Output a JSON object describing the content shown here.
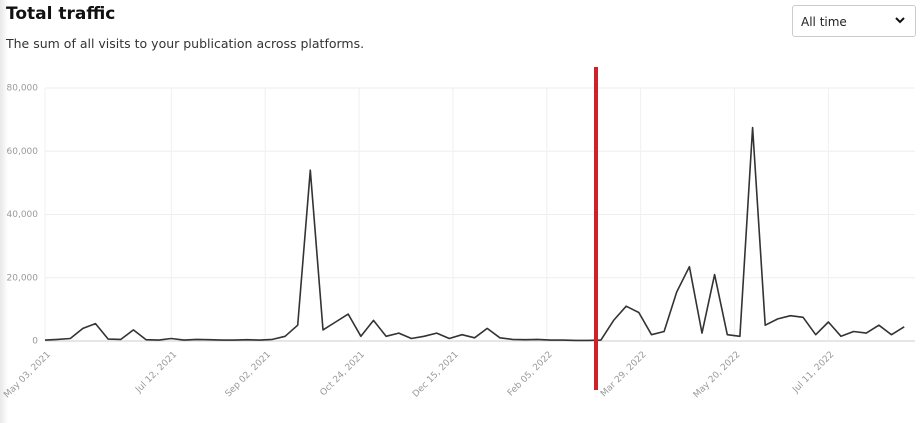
{
  "chart_data": {
    "type": "line",
    "title": "Total traffic",
    "subtitle": "The sum of all visits to your publication across platforms.",
    "x": [
      "2021-05-03",
      "2021-05-10",
      "2021-05-17",
      "2021-05-24",
      "2021-05-31",
      "2021-06-07",
      "2021-06-14",
      "2021-06-21",
      "2021-06-28",
      "2021-07-05",
      "2021-07-12",
      "2021-07-19",
      "2021-07-26",
      "2021-08-02",
      "2021-08-09",
      "2021-08-16",
      "2021-08-23",
      "2021-08-30",
      "2021-09-06",
      "2021-09-13",
      "2021-09-20",
      "2021-09-27",
      "2021-10-04",
      "2021-10-11",
      "2021-10-18",
      "2021-10-25",
      "2021-11-01",
      "2021-11-08",
      "2021-11-15",
      "2021-11-22",
      "2021-11-29",
      "2021-12-06",
      "2021-12-13",
      "2021-12-20",
      "2021-12-27",
      "2022-01-03",
      "2022-01-10",
      "2022-01-17",
      "2022-01-24",
      "2022-01-31",
      "2022-02-07",
      "2022-02-14",
      "2022-02-21",
      "2022-02-28",
      "2022-03-07",
      "2022-03-14",
      "2022-03-21",
      "2022-03-28",
      "2022-04-04",
      "2022-04-11",
      "2022-04-18",
      "2022-04-25",
      "2022-05-02",
      "2022-05-09",
      "2022-05-16",
      "2022-05-23",
      "2022-05-30",
      "2022-06-06",
      "2022-06-13",
      "2022-06-20",
      "2022-06-27",
      "2022-07-04",
      "2022-07-11",
      "2022-07-18",
      "2022-07-25",
      "2022-08-01",
      "2022-08-08",
      "2022-08-15",
      "2022-08-22"
    ],
    "values": [
      300,
      500,
      800,
      4000,
      5500,
      600,
      500,
      3500,
      400,
      300,
      800,
      300,
      500,
      400,
      300,
      300,
      400,
      300,
      500,
      1500,
      5000,
      54000,
      3500,
      6000,
      8500,
      1500,
      6500,
      1500,
      2500,
      800,
      1500,
      2500,
      800,
      2000,
      1000,
      4000,
      1000,
      500,
      400,
      500,
      300,
      300,
      200,
      200,
      300,
      6500,
      11000,
      9000,
      2000,
      3000,
      15500,
      23500,
      2500,
      21000,
      2000,
      1500,
      67500,
      5000,
      7000,
      8000,
      7500,
      2000,
      6000,
      1500,
      3000,
      2500,
      5000,
      2000,
      4500
    ],
    "color": "#333333",
    "xlim": [
      "2021-05-03",
      "2022-08-28"
    ],
    "xticks": [
      {
        "value": "2021-05-03",
        "label": "May 03, 2021"
      },
      {
        "value": "2021-07-12",
        "label": "Jul 12, 2021"
      },
      {
        "value": "2021-09-02",
        "label": "Sep 02, 2021"
      },
      {
        "value": "2021-10-24",
        "label": "Oct 24, 2021"
      },
      {
        "value": "2021-12-15",
        "label": "Dec 15, 2021"
      },
      {
        "value": "2022-02-05",
        "label": "Feb 05, 2022"
      },
      {
        "value": "2022-03-29",
        "label": "Mar 29, 2022"
      },
      {
        "value": "2022-05-20",
        "label": "May 20, 2022"
      },
      {
        "value": "2022-07-11",
        "label": "Jul 11, 2022"
      }
    ],
    "ylim": [
      0,
      80000
    ],
    "yticks": [
      0,
      {
        "value": 20000,
        "label": "20,000"
      },
      {
        "value": 40000,
        "label": "40,000"
      },
      {
        "value": 60000,
        "label": "60,000"
      },
      {
        "value": 80000,
        "label": "80,000"
      }
    ],
    "grid": true
  },
  "dropdown": {
    "label": "All time"
  }
}
